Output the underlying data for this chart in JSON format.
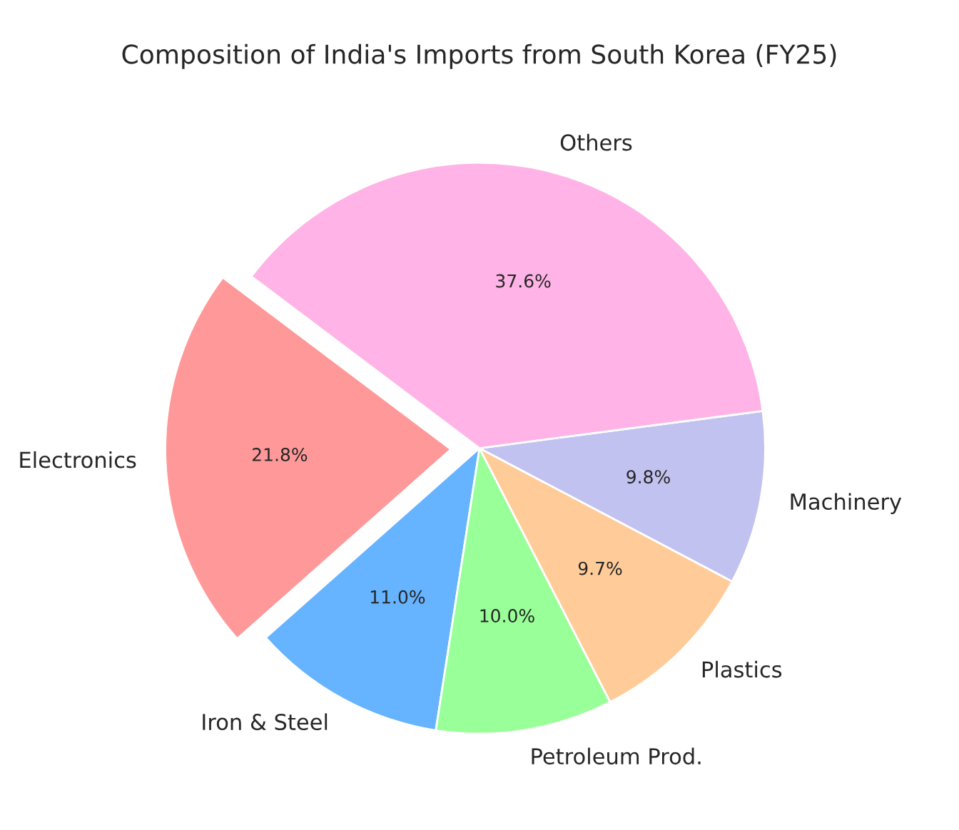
{
  "chart_data": {
    "type": "pie",
    "title": "Composition of India's Imports from South Korea (FY25)",
    "categories": [
      "Electronics",
      "Iron & Steel",
      "Petroleum Prod.",
      "Plastics",
      "Machinery",
      "Others"
    ],
    "values": [
      21.8,
      11.0,
      10.0,
      9.7,
      9.8,
      37.6
    ],
    "value_labels": [
      "21.8%",
      "11.0%",
      "10.0%",
      "9.7%",
      "9.8%",
      "37.6%"
    ],
    "colors": [
      "#ff9999",
      "#66b3ff",
      "#99ff99",
      "#ffcc99",
      "#c2c2f0",
      "#ffb3e6"
    ]
  }
}
